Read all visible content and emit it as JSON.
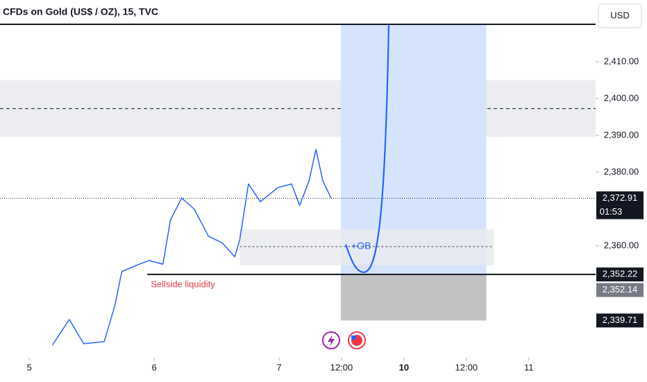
{
  "chart_data": {
    "type": "line",
    "title": "CFDs on Gold (US$ / OZ), 15, TVC",
    "currency": "USD",
    "x": [
      0.37,
      0.64,
      0.87,
      1.2,
      1.37,
      1.48,
      1.76,
      1.92,
      2.14,
      2.26,
      2.44,
      2.64,
      2.87,
      3.09,
      3.29,
      3.37,
      3.51,
      3.7,
      3.98,
      4.2,
      4.33,
      4.48,
      4.59,
      4.7,
      4.83
    ],
    "values": [
      2333,
      2340,
      2333.4,
      2334,
      2343.8,
      2353,
      2355,
      2356,
      2355,
      2367,
      2373,
      2370,
      2362.6,
      2360.8,
      2357,
      2361.7,
      2376.8,
      2372,
      2375.8,
      2376.8,
      2371,
      2377.7,
      2386.2,
      2377.7,
      2373
    ],
    "color": "#2962ff",
    "xlim": [
      -0.47,
      9.07
    ],
    "xticks": [
      {
        "value": 0,
        "label": "5"
      },
      {
        "value": 2,
        "label": "6"
      },
      {
        "value": 4,
        "label": "7"
      },
      {
        "value": 5,
        "label": "12:00"
      },
      {
        "value": 6,
        "label": "10"
      },
      {
        "value": 7,
        "label": "12:00"
      },
      {
        "value": 8,
        "label": "11"
      }
    ],
    "ylim": [
      2329.6,
      2420.2
    ],
    "yticks": [
      {
        "value": 2360,
        "label": "2,360.00"
      },
      {
        "value": 2380,
        "label": "2,380.00"
      },
      {
        "value": 2390,
        "label": "2,390.00"
      },
      {
        "value": 2400,
        "label": "2,400.00"
      },
      {
        "value": 2410,
        "label": "2,410.00"
      }
    ],
    "last_price": {
      "value": 2372.91,
      "label": "2,372.91",
      "countdown": "01:53"
    },
    "supply_zone": {
      "low": 2389.6,
      "high": 2405,
      "mid": 2397.3
    },
    "order_block": {
      "label": "+OB",
      "low": 2354.7,
      "high": 2364.5,
      "mid": 2359.8,
      "x": [
        3.37,
        7.44
      ]
    },
    "sellside": {
      "label": "Sellside liquidity",
      "value": 2352.22,
      "price_label": "2,352.22",
      "x": 1.89
    },
    "bid": {
      "value": 2352.14,
      "label": "2,352.14"
    },
    "target_box": {
      "x": [
        4.99,
        7.32
      ],
      "entry": 2352.22,
      "stop": {
        "value": 2339.71,
        "label": "2,339.71"
      }
    }
  }
}
